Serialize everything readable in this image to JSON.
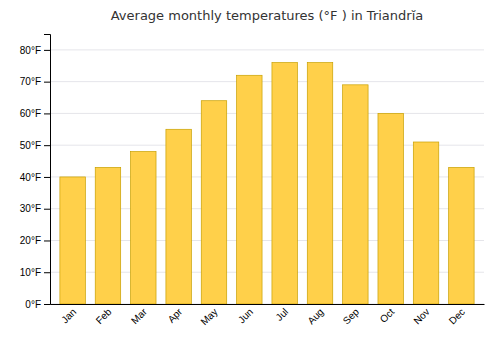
{
  "chart_data": {
    "type": "bar",
    "title": "Average monthly temperatures (°F ) in Triandrĭa",
    "categories": [
      "Jan",
      "Feb",
      "Mar",
      "Apr",
      "May",
      "Jun",
      "Jul",
      "Aug",
      "Sep",
      "Oct",
      "Nov",
      "Dec"
    ],
    "values": [
      40,
      43,
      48,
      55,
      64,
      72,
      76,
      76,
      69,
      60,
      51,
      43
    ],
    "color": "#FFD04A",
    "ylim": [
      0,
      85
    ],
    "yticks": [
      {
        "value": 0,
        "label": "0°F"
      },
      {
        "value": 10,
        "label": "10°F"
      },
      {
        "value": 20,
        "label": "20°F"
      },
      {
        "value": 30,
        "label": "30°F"
      },
      {
        "value": 40,
        "label": "40°F"
      },
      {
        "value": 50,
        "label": "50°F"
      },
      {
        "value": 60,
        "label": "60°F"
      },
      {
        "value": 70,
        "label": "70°F"
      },
      {
        "value": 80,
        "label": "80°F"
      }
    ],
    "grid": true
  }
}
